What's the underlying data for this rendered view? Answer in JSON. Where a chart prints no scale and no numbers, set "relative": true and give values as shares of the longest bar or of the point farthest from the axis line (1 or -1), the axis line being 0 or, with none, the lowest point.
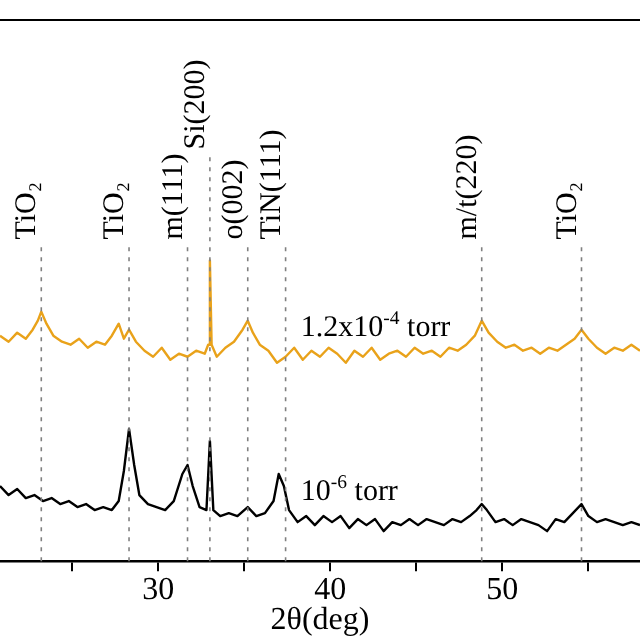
{
  "chart_data": {
    "type": "line",
    "relative": true,
    "xlabel": "2θ(deg)",
    "xlim": [
      20.8,
      58
    ],
    "xticks": [
      {
        "value": 25,
        "label": null
      },
      30,
      {
        "value": 35,
        "label": null
      },
      40,
      {
        "value": 45,
        "label": null
      },
      50,
      {
        "value": 55,
        "label": null
      }
    ],
    "legend": false,
    "grid": false,
    "marker": "none",
    "line_style": "solid",
    "tick_labels": "x",
    "series": [
      {
        "name": "1.2x10$^{-4}$ torr",
        "color": "#e9a21a",
        "x": [
          20.8,
          21.3,
          21.8,
          22.3,
          22.7,
          23.0,
          23.2,
          23.5,
          23.9,
          24.4,
          24.9,
          25.4,
          25.9,
          26.4,
          26.9,
          27.3,
          27.7,
          28.0,
          28.3,
          28.7,
          29.2,
          29.7,
          30.2,
          30.7,
          31.2,
          31.7,
          32.2,
          32.7,
          32.9,
          33.0,
          33.1,
          33.4,
          33.9,
          34.4,
          34.9,
          35.2,
          35.5,
          35.9,
          36.4,
          36.9,
          37.4,
          37.9,
          38.4,
          38.9,
          39.4,
          39.9,
          40.4,
          40.9,
          41.4,
          41.9,
          42.4,
          42.9,
          43.4,
          43.9,
          44.4,
          44.9,
          45.4,
          45.9,
          46.4,
          46.9,
          47.4,
          47.9,
          48.4,
          48.8,
          49.2,
          49.7,
          50.2,
          50.7,
          51.2,
          51.7,
          52.2,
          52.7,
          53.2,
          53.7,
          54.2,
          54.6,
          55.0,
          55.5,
          56.0,
          56.5,
          57.0,
          57.5,
          58.0
        ],
        "values": [
          0.75,
          0.73,
          0.76,
          0.74,
          0.77,
          0.8,
          0.83,
          0.79,
          0.75,
          0.73,
          0.72,
          0.74,
          0.71,
          0.73,
          0.72,
          0.75,
          0.79,
          0.74,
          0.77,
          0.73,
          0.7,
          0.68,
          0.71,
          0.67,
          0.69,
          0.68,
          0.7,
          0.69,
          0.72,
          1.0,
          0.72,
          0.68,
          0.71,
          0.73,
          0.77,
          0.8,
          0.76,
          0.72,
          0.7,
          0.66,
          0.68,
          0.71,
          0.67,
          0.7,
          0.68,
          0.71,
          0.69,
          0.66,
          0.7,
          0.68,
          0.71,
          0.67,
          0.69,
          0.7,
          0.68,
          0.71,
          0.69,
          0.7,
          0.68,
          0.71,
          0.7,
          0.72,
          0.75,
          0.8,
          0.76,
          0.73,
          0.71,
          0.72,
          0.7,
          0.71,
          0.69,
          0.71,
          0.7,
          0.72,
          0.74,
          0.77,
          0.74,
          0.71,
          0.69,
          0.71,
          0.7,
          0.72,
          0.7
        ]
      },
      {
        "name": "10$^{-6}$ torr",
        "color": "#000000",
        "x": [
          20.8,
          21.3,
          21.8,
          22.3,
          22.8,
          23.3,
          23.8,
          24.3,
          24.8,
          25.3,
          25.8,
          26.3,
          26.8,
          27.3,
          27.7,
          28.0,
          28.3,
          28.6,
          28.9,
          29.4,
          29.9,
          30.4,
          30.9,
          31.4,
          31.7,
          32.0,
          32.4,
          32.8,
          33.0,
          33.2,
          33.6,
          34.1,
          34.6,
          35.2,
          35.7,
          36.2,
          36.7,
          37.0,
          37.3,
          37.6,
          38.1,
          38.6,
          39.1,
          39.6,
          40.1,
          40.6,
          41.1,
          41.6,
          42.1,
          42.6,
          43.1,
          43.6,
          44.1,
          44.6,
          45.1,
          45.6,
          46.1,
          46.6,
          47.1,
          47.6,
          48.1,
          48.5,
          48.8,
          49.1,
          49.6,
          50.1,
          50.6,
          51.1,
          51.6,
          52.1,
          52.6,
          53.1,
          53.6,
          54.1,
          54.6,
          55.0,
          55.5,
          56.0,
          56.5,
          57.0,
          57.5,
          58.0
        ],
        "values": [
          0.25,
          0.22,
          0.24,
          0.21,
          0.22,
          0.2,
          0.21,
          0.19,
          0.2,
          0.18,
          0.19,
          0.17,
          0.18,
          0.17,
          0.2,
          0.3,
          0.44,
          0.32,
          0.22,
          0.19,
          0.18,
          0.17,
          0.2,
          0.29,
          0.32,
          0.25,
          0.18,
          0.17,
          0.4,
          0.17,
          0.15,
          0.16,
          0.15,
          0.18,
          0.15,
          0.16,
          0.2,
          0.29,
          0.25,
          0.17,
          0.13,
          0.15,
          0.12,
          0.15,
          0.13,
          0.15,
          0.11,
          0.14,
          0.12,
          0.14,
          0.1,
          0.13,
          0.12,
          0.14,
          0.12,
          0.14,
          0.13,
          0.12,
          0.14,
          0.13,
          0.15,
          0.17,
          0.19,
          0.17,
          0.13,
          0.14,
          0.12,
          0.14,
          0.13,
          0.12,
          0.1,
          0.14,
          0.13,
          0.16,
          0.19,
          0.15,
          0.13,
          0.14,
          0.13,
          0.12,
          0.13,
          0.12
        ]
      }
    ],
    "ref_lines": [
      {
        "axis": "x",
        "value": 23.2,
        "label": "TiO₂",
        "color": "#808080",
        "line_style": "dotted"
      },
      {
        "axis": "x",
        "value": 28.3,
        "label": "TiO₂",
        "color": "#808080",
        "line_style": "dotted"
      },
      {
        "axis": "x",
        "value": 31.7,
        "label": "m(111)",
        "color": "#808080",
        "line_style": "dotted"
      },
      {
        "axis": "x",
        "value": 33.0,
        "label": "Si(200)",
        "color": "#808080",
        "line_style": "dotted"
      },
      {
        "axis": "x",
        "value": 35.2,
        "label": "o(002)",
        "color": "#808080",
        "line_style": "dotted"
      },
      {
        "axis": "x",
        "value": 37.4,
        "label": "TiN(111)",
        "color": "#808080",
        "line_style": "dotted"
      },
      {
        "axis": "x",
        "value": 48.8,
        "label": "m/t(220)",
        "color": "#808080",
        "line_style": "dotted"
      },
      {
        "axis": "x",
        "value": 54.6,
        "label": "TiO₂",
        "color": "#808080",
        "line_style": "dotted"
      }
    ]
  }
}
